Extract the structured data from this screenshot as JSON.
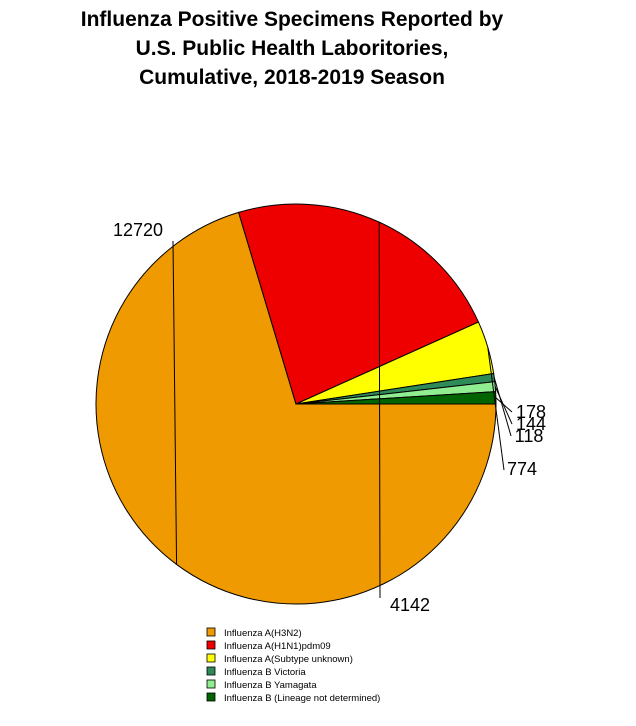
{
  "chart_data": {
    "type": "pie",
    "title_lines": [
      "Influenza Positive Specimens Reported by",
      "U.S. Public Health Laboritories,",
      "Cumulative, 2018-2019 Season"
    ],
    "slices": [
      {
        "name": "Influenza A(H3N2)",
        "value": 12720,
        "label": "12720",
        "color": "#ef9a00"
      },
      {
        "name": "Influenza A(H1N1)pdm09",
        "value": 4142,
        "label": "4142",
        "color": "#ee0000"
      },
      {
        "name": "Influenza A(Subtype unknown)",
        "value": 774,
        "label": "774",
        "color": "#ffff00"
      },
      {
        "name": "Influenza B Victoria",
        "value": 118,
        "label": "118",
        "color": "#2e8b57"
      },
      {
        "name": "Influenza B Yamagata",
        "value": 144,
        "label": "144",
        "color": "#90ee90"
      },
      {
        "name": "Influenza B (Lineage not determined)",
        "value": 178,
        "label": "178",
        "color": "#006400"
      }
    ],
    "start_angle_deg": 0,
    "direction": "clockwise",
    "legend_position": "bottom"
  }
}
